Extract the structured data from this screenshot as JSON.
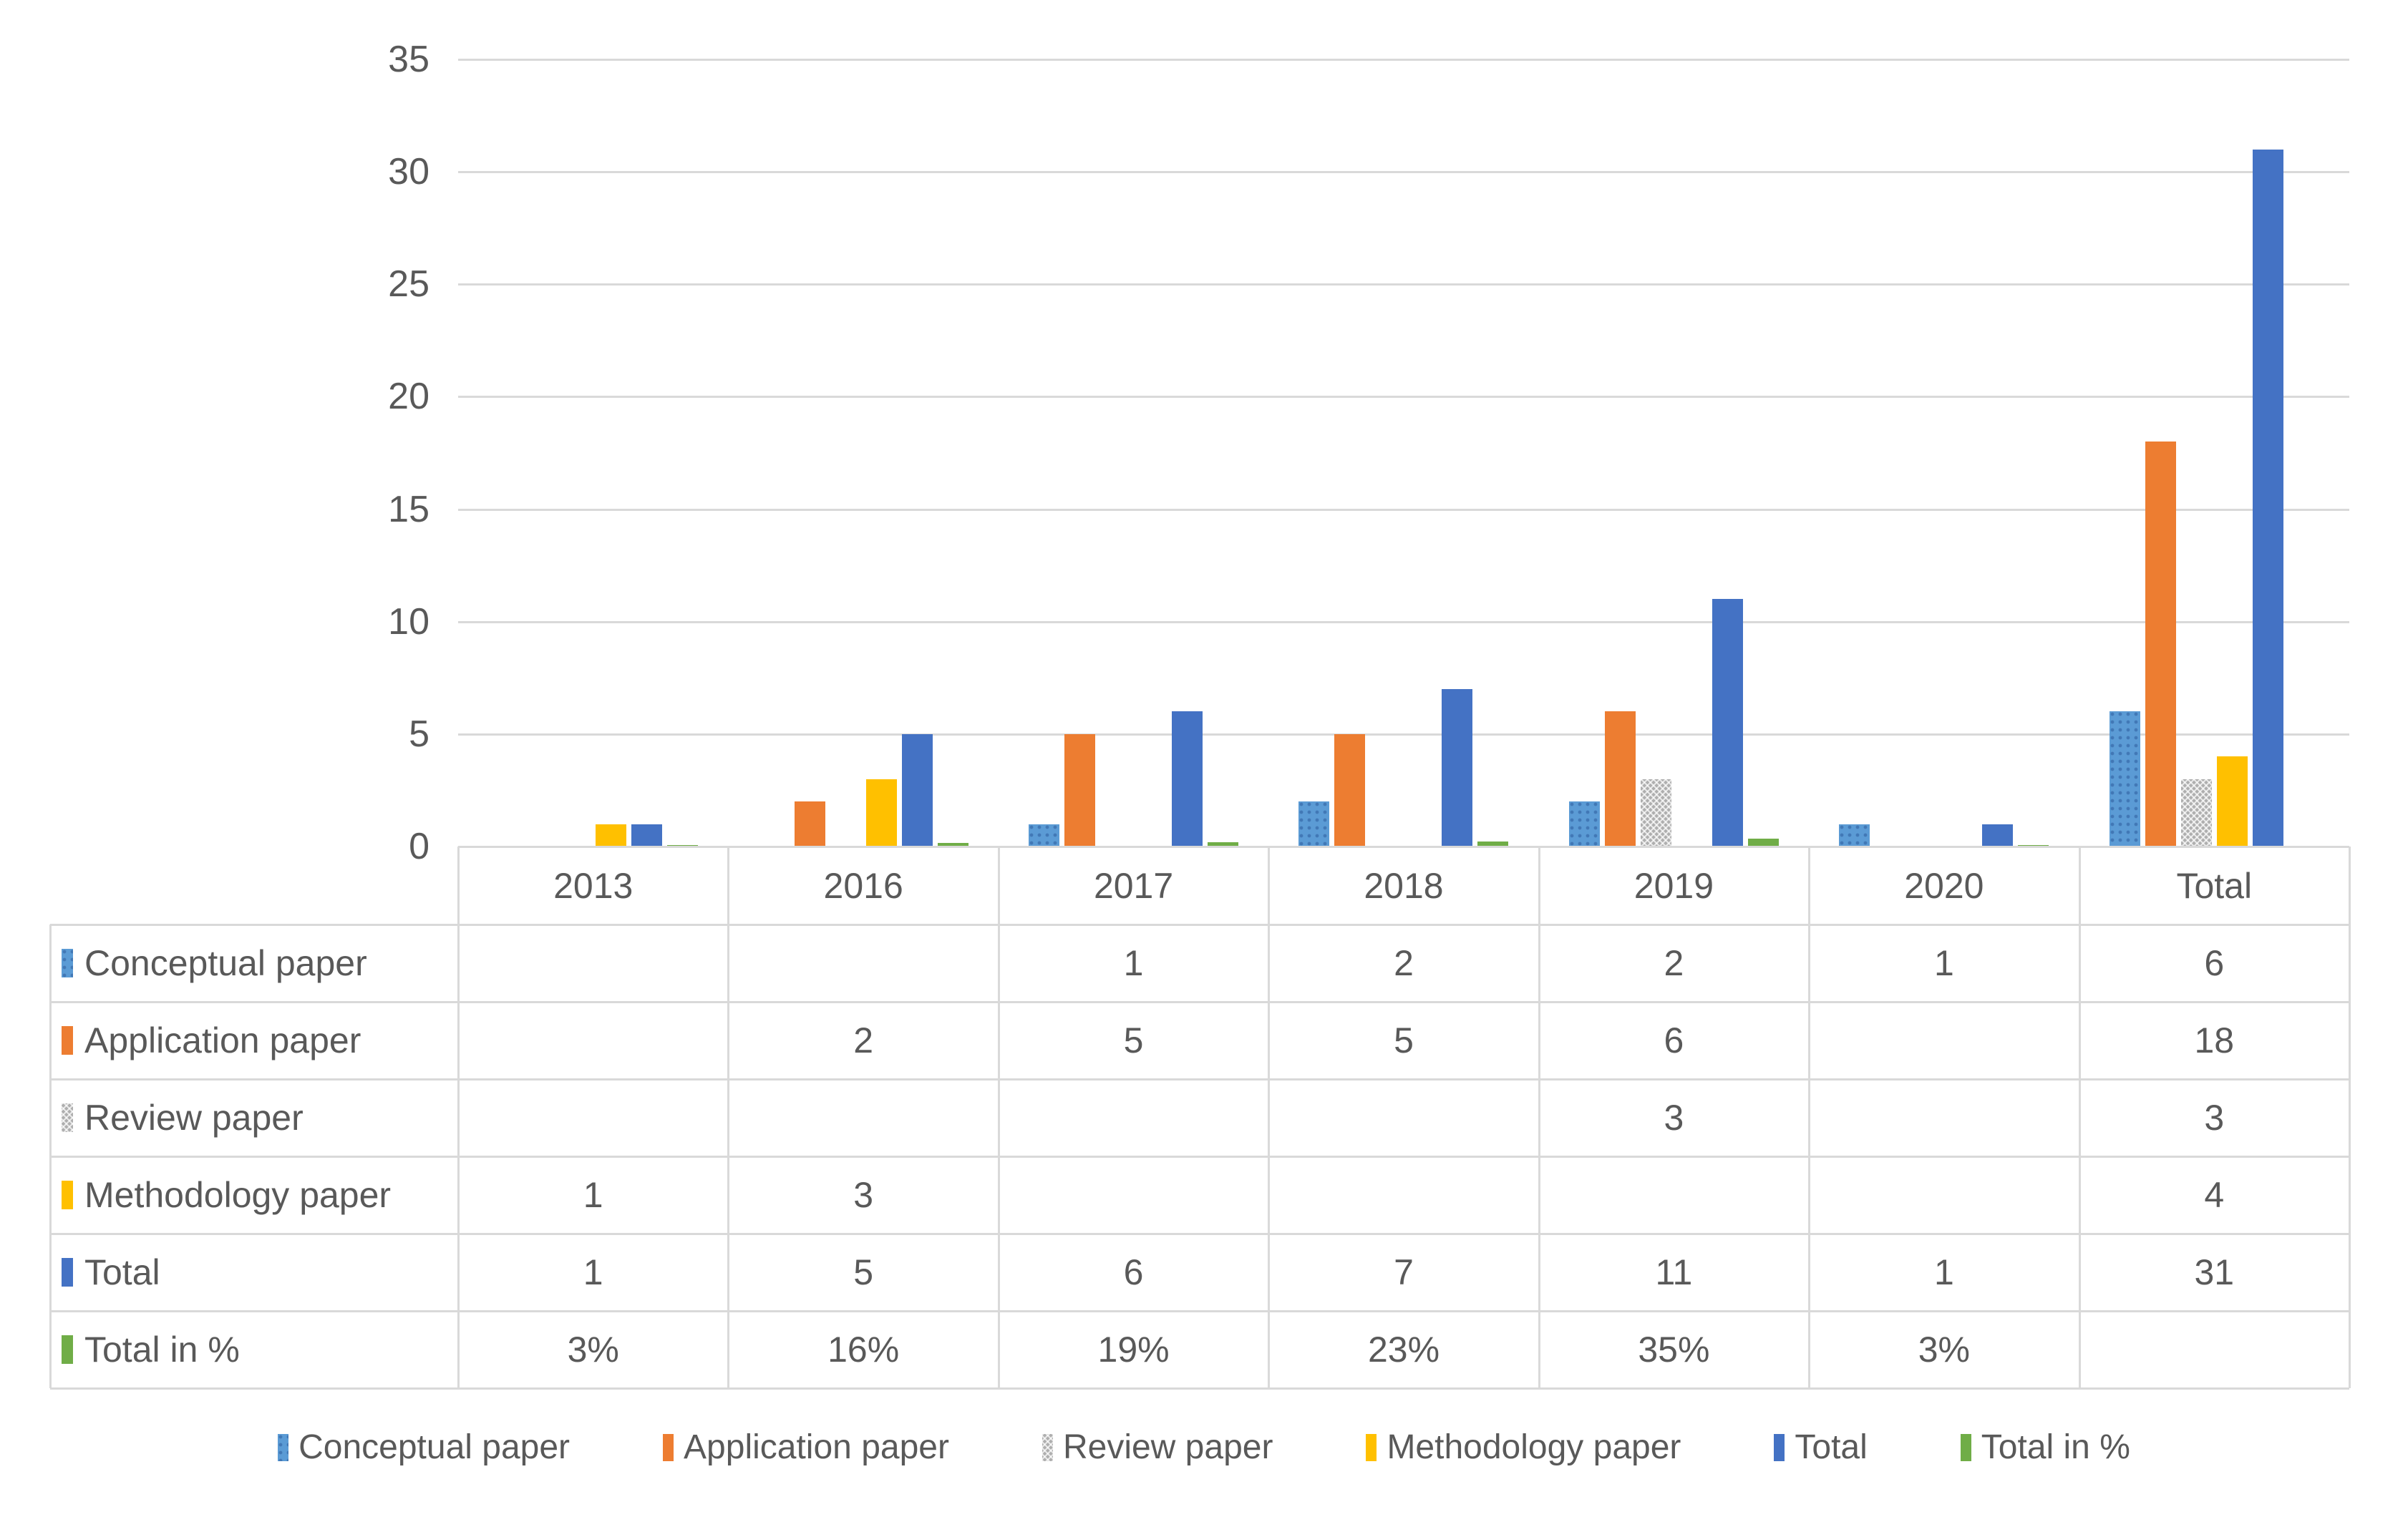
{
  "chart_data": {
    "type": "bar",
    "title": "",
    "categories": [
      "2013",
      "2016",
      "2017",
      "2018",
      "2019",
      "2020",
      "Total"
    ],
    "series": [
      {
        "name": "Conceptual paper",
        "color": "#5B9BD5",
        "fill_pattern": "dots",
        "values": [
          null,
          null,
          1,
          2,
          2,
          1,
          6
        ]
      },
      {
        "name": "Application paper",
        "color": "#ED7D31",
        "fill_pattern": "solid",
        "values": [
          null,
          2,
          5,
          5,
          6,
          null,
          18
        ]
      },
      {
        "name": "Review paper",
        "color": "#A5A5A5",
        "fill_pattern": "crosshatch",
        "values": [
          null,
          null,
          null,
          null,
          3,
          null,
          3
        ]
      },
      {
        "name": "Methodology paper",
        "color": "#FFC000",
        "fill_pattern": "solid",
        "values": [
          1,
          3,
          null,
          null,
          null,
          null,
          4
        ]
      },
      {
        "name": "Total",
        "color": "#4472C4",
        "fill_pattern": "solid",
        "values": [
          1,
          5,
          6,
          7,
          11,
          1,
          31
        ]
      },
      {
        "name": "Total in %",
        "color": "#70AD47",
        "fill_pattern": "solid",
        "values": [
          0.03,
          0.16,
          0.19,
          0.23,
          0.35,
          0.03,
          null
        ]
      }
    ],
    "xlabel": "",
    "ylabel": "",
    "ylim": [
      0,
      35
    ],
    "y_ticks": [
      35,
      30,
      25,
      20,
      15,
      10,
      5,
      0
    ],
    "grid": true,
    "gridline_color": "#D9D9D9",
    "axis_text_color": "#595959",
    "legend_position": "bottom"
  },
  "table": {
    "column_headers": [
      "2013",
      "2016",
      "2017",
      "2018",
      "2019",
      "2020",
      "Total"
    ],
    "rows": [
      {
        "label": "Conceptual paper",
        "values": [
          "",
          "",
          "1",
          "2",
          "2",
          "1",
          "6"
        ]
      },
      {
        "label": "Application paper",
        "values": [
          "",
          "2",
          "5",
          "5",
          "6",
          "",
          "18"
        ]
      },
      {
        "label": "Review paper",
        "values": [
          "",
          "",
          "",
          "",
          "3",
          "",
          "3"
        ]
      },
      {
        "label": "Methodology paper",
        "values": [
          "1",
          "3",
          "",
          "",
          "",
          "",
          "4"
        ]
      },
      {
        "label": "Total",
        "values": [
          "1",
          "5",
          "6",
          "7",
          "11",
          "1",
          "31"
        ]
      },
      {
        "label": "Total in %",
        "values": [
          "3%",
          "16%",
          "19%",
          "23%",
          "35%",
          "3%",
          ""
        ]
      }
    ]
  },
  "legend": {
    "items": [
      "Conceptual paper",
      "Application paper",
      "Review paper",
      "Methodology paper",
      "Total",
      "Total in %"
    ]
  }
}
